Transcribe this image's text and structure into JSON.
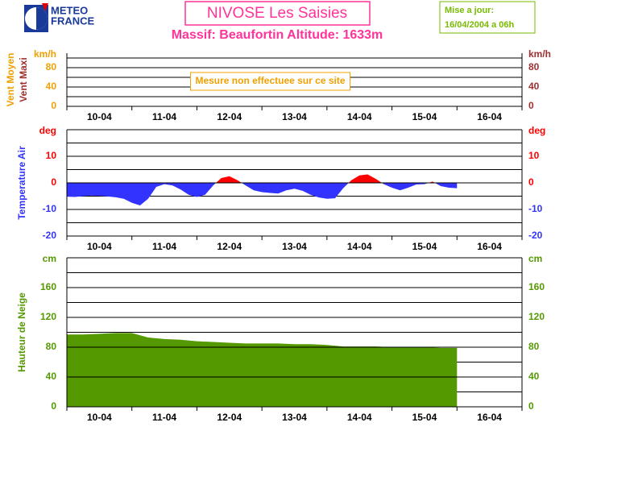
{
  "header": {
    "logo": [
      "METEO",
      "FRANCE"
    ],
    "title": "NIVOSE Les Saisies",
    "subtitle": "Massif: Beaufortin Altitude: 1633m",
    "update": [
      "Mise a jour:",
      "16/04/2004 a 06h"
    ]
  },
  "chart_data": [
    {
      "type": "line",
      "unit": "km/h",
      "left_color": "#f0a000",
      "right_color": "#a03030",
      "ylabels": [
        {
          "text": "Vent Moyen",
          "color": "#f0a000"
        },
        {
          "text": "Vent Maxi",
          "color": "#a03030"
        }
      ],
      "annotation": "Mesure non effectuee sur ce site",
      "xlim": [
        10,
        17
      ],
      "xticks": [
        {
          "value": 10.5,
          "label": "10-04"
        },
        {
          "value": 11.5,
          "label": "11-04"
        },
        {
          "value": 12.5,
          "label": "12-04"
        },
        {
          "value": 13.5,
          "label": "13-04"
        },
        {
          "value": 14.5,
          "label": "14-04"
        },
        {
          "value": 15.5,
          "label": "15-04"
        },
        {
          "value": 16.5,
          "label": "16-04"
        }
      ],
      "minor_xticks": [
        10,
        11,
        12,
        13,
        14,
        15,
        16,
        17
      ],
      "ylim": [
        0,
        110
      ],
      "yticks": [
        0,
        40,
        80
      ],
      "minor_yticks": [
        20,
        60,
        100
      ]
    },
    {
      "type": "signed-area",
      "unit": "deg",
      "left_color": "#ff0000",
      "right_color": "#ff0000",
      "positive_color": "#ff0000",
      "negative_color": "#3333ff",
      "ylabels": [
        {
          "text": "Temperature Air",
          "color": "#3333ff"
        }
      ],
      "xlim": [
        10,
        17
      ],
      "xticks": [
        {
          "value": 10.5,
          "label": "10-04"
        },
        {
          "value": 11.5,
          "label": "11-04"
        },
        {
          "value": 12.5,
          "label": "12-04"
        },
        {
          "value": 13.5,
          "label": "13-04"
        },
        {
          "value": 14.5,
          "label": "14-04"
        },
        {
          "value": 15.5,
          "label": "15-04"
        },
        {
          "value": 16.5,
          "label": "16-04"
        }
      ],
      "minor_xticks": [
        10,
        11,
        12,
        13,
        14,
        15,
        16,
        17
      ],
      "ylim": [
        -20,
        20
      ],
      "yticks": [
        -20,
        -10,
        0,
        10
      ],
      "minor_yticks": [
        -15,
        -5,
        5,
        15,
        20
      ],
      "x": [
        10.0,
        10.125,
        10.25,
        10.375,
        10.5,
        10.625,
        10.75,
        10.875,
        11.0,
        11.125,
        11.25,
        11.375,
        11.5,
        11.625,
        11.75,
        11.875,
        12.0,
        12.125,
        12.25,
        12.375,
        12.5,
        12.625,
        12.75,
        12.875,
        13.0,
        13.125,
        13.25,
        13.375,
        13.5,
        13.625,
        13.75,
        13.875,
        14.0,
        14.125,
        14.25,
        14.375,
        14.5,
        14.625,
        14.75,
        14.875,
        15.0,
        15.125,
        15.25,
        15.375,
        15.5,
        15.625,
        15.75,
        15.875,
        16.0
      ],
      "values": [
        -5.2,
        -5.3,
        -5.0,
        -4.8,
        -4.9,
        -5.1,
        -5.4,
        -6.0,
        -7.5,
        -8.5,
        -6.0,
        -1.5,
        -0.5,
        -1.0,
        -2.5,
        -4.5,
        -5.3,
        -4.5,
        -1.0,
        1.8,
        2.5,
        1.0,
        -1.0,
        -2.8,
        -3.5,
        -3.8,
        -4.0,
        -2.8,
        -2.2,
        -3.0,
        -4.5,
        -5.5,
        -6.0,
        -5.8,
        -2.0,
        1.0,
        2.8,
        3.2,
        1.5,
        -0.5,
        -1.8,
        -2.8,
        -1.8,
        -0.6,
        -0.5,
        0.5,
        -1.2,
        -1.8,
        -2.0
      ]
    },
    {
      "type": "area",
      "unit": "cm",
      "left_color": "#559900",
      "right_color": "#559900",
      "color": "#559900",
      "ylabels": [
        {
          "text": "Hauteur de Neige",
          "color": "#559900"
        }
      ],
      "xlim": [
        10,
        17
      ],
      "xticks": [
        {
          "value": 10.5,
          "label": "10-04"
        },
        {
          "value": 11.5,
          "label": "11-04"
        },
        {
          "value": 12.5,
          "label": "12-04"
        },
        {
          "value": 13.5,
          "label": "13-04"
        },
        {
          "value": 14.5,
          "label": "14-04"
        },
        {
          "value": 15.5,
          "label": "15-04"
        },
        {
          "value": 16.5,
          "label": "16-04"
        }
      ],
      "minor_xticks": [
        10,
        11,
        12,
        13,
        14,
        15,
        16,
        17
      ],
      "ylim": [
        0,
        200
      ],
      "yticks": [
        0,
        40,
        80,
        120,
        160
      ],
      "minor_yticks": [
        20,
        60,
        100,
        140,
        180,
        200
      ],
      "x": [
        10.0,
        10.25,
        10.5,
        10.75,
        11.0,
        11.25,
        11.5,
        11.75,
        12.0,
        12.25,
        12.5,
        12.75,
        13.0,
        13.25,
        13.5,
        13.75,
        14.0,
        14.25,
        14.5,
        14.75,
        15.0,
        15.25,
        15.5,
        15.75,
        16.0
      ],
      "values": [
        97,
        97,
        98,
        99,
        99,
        93,
        91,
        90,
        88,
        87,
        86,
        85,
        85,
        85,
        84,
        84,
        83,
        81,
        81,
        81,
        80,
        80,
        80,
        79,
        79
      ]
    }
  ]
}
